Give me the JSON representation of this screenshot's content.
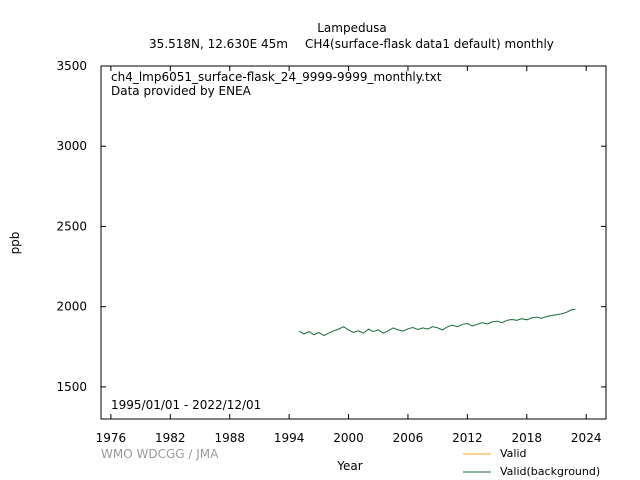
{
  "header": {
    "station": "Lampedusa",
    "coords": "35.518N, 12.630E 45m",
    "dataset": "CH4(surface-flask data1 default) monthly"
  },
  "annotations": {
    "filename": "ch4_lmp6051_surface-flask_24_9999-9999_monthly.txt",
    "provider": "Data provided by ENEA",
    "period": "1995/01/01 - 2022/12/01"
  },
  "credit": "WMO WDCGG / JMA",
  "colors": {
    "valid": "#f5a623",
    "background": "#1a6b3a"
  },
  "chart_data": {
    "type": "line",
    "xlabel": "Year",
    "ylabel": "ppb",
    "xlim": [
      1975,
      2026
    ],
    "ylim": [
      1300,
      3500
    ],
    "xticks": [
      "1976",
      "1982",
      "1988",
      "1994",
      "2000",
      "2006",
      "2012",
      "2018",
      "2024"
    ],
    "yticks": [
      "1500",
      "2000",
      "2500",
      "3000",
      "3500"
    ],
    "legend": {
      "placement": "bottom-right"
    },
    "series": [
      {
        "name": "Valid",
        "x": [],
        "y": []
      },
      {
        "name": "Valid(background)",
        "x": [
          1995.0,
          1995.5,
          1996.0,
          1996.5,
          1997.0,
          1997.5,
          1998.0,
          1998.5,
          1999.0,
          1999.5,
          2000.0,
          2000.5,
          2001.0,
          2001.5,
          2002.0,
          2002.5,
          2003.0,
          2003.5,
          2004.0,
          2004.5,
          2005.0,
          2005.5,
          2006.0,
          2006.5,
          2007.0,
          2007.5,
          2008.0,
          2008.5,
          2009.0,
          2009.5,
          2010.0,
          2010.5,
          2011.0,
          2011.5,
          2012.0,
          2012.5,
          2013.0,
          2013.5,
          2014.0,
          2014.5,
          2015.0,
          2015.5,
          2016.0,
          2016.5,
          2017.0,
          2017.5,
          2018.0,
          2018.5,
          2019.0,
          2019.5,
          2020.0,
          2020.5,
          2021.0,
          2021.5,
          2022.0,
          2022.5,
          2022.9
        ],
        "y": [
          1848,
          1830,
          1845,
          1825,
          1840,
          1820,
          1835,
          1850,
          1860,
          1875,
          1855,
          1840,
          1850,
          1835,
          1860,
          1845,
          1855,
          1835,
          1850,
          1868,
          1855,
          1848,
          1862,
          1870,
          1858,
          1868,
          1860,
          1875,
          1868,
          1855,
          1875,
          1885,
          1875,
          1890,
          1895,
          1880,
          1890,
          1900,
          1892,
          1905,
          1910,
          1900,
          1915,
          1920,
          1915,
          1925,
          1918,
          1930,
          1935,
          1928,
          1938,
          1945,
          1950,
          1955,
          1965,
          1980,
          1985
        ]
      }
    ]
  }
}
